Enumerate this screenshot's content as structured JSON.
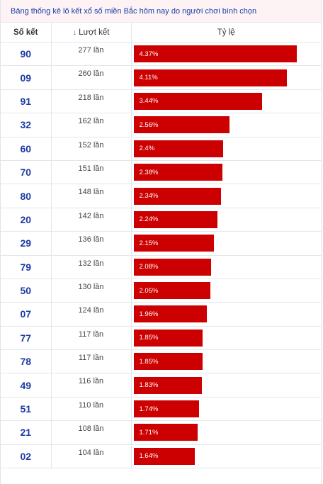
{
  "title": "Bảng thống kê lô kết xổ số miền Bắc hôm nay do người chơi bình chọn",
  "headers": {
    "so_ket": "Số kết",
    "luot_ket": "Lượt kết",
    "ty_le": "Tỷ lệ"
  },
  "sort_icon": "arrow-down-icon",
  "bar_color": "#cc0000",
  "bar_max_percent": 4.37,
  "rows": [
    {
      "number": "90",
      "count": "277 lần",
      "percent": "4.37%",
      "value": 4.37
    },
    {
      "number": "09",
      "count": "260 lần",
      "percent": "4.11%",
      "value": 4.11
    },
    {
      "number": "91",
      "count": "218 lần",
      "percent": "3.44%",
      "value": 3.44
    },
    {
      "number": "32",
      "count": "162 lần",
      "percent": "2.56%",
      "value": 2.56
    },
    {
      "number": "60",
      "count": "152 lần",
      "percent": "2.4%",
      "value": 2.4
    },
    {
      "number": "70",
      "count": "151 lần",
      "percent": "2.38%",
      "value": 2.38
    },
    {
      "number": "80",
      "count": "148 lần",
      "percent": "2.34%",
      "value": 2.34
    },
    {
      "number": "20",
      "count": "142 lần",
      "percent": "2.24%",
      "value": 2.24
    },
    {
      "number": "29",
      "count": "136 lần",
      "percent": "2.15%",
      "value": 2.15
    },
    {
      "number": "79",
      "count": "132 lần",
      "percent": "2.08%",
      "value": 2.08
    },
    {
      "number": "50",
      "count": "130 lần",
      "percent": "2.05%",
      "value": 2.05
    },
    {
      "number": "07",
      "count": "124 lần",
      "percent": "1.96%",
      "value": 1.96
    },
    {
      "number": "77",
      "count": "117 lần",
      "percent": "1.85%",
      "value": 1.85
    },
    {
      "number": "78",
      "count": "117 lần",
      "percent": "1.85%",
      "value": 1.85
    },
    {
      "number": "49",
      "count": "116 lần",
      "percent": "1.83%",
      "value": 1.83
    },
    {
      "number": "51",
      "count": "110 lần",
      "percent": "1.74%",
      "value": 1.74
    },
    {
      "number": "21",
      "count": "108 lần",
      "percent": "1.71%",
      "value": 1.71
    },
    {
      "number": "02",
      "count": "104 lần",
      "percent": "1.64%",
      "value": 1.64
    }
  ]
}
